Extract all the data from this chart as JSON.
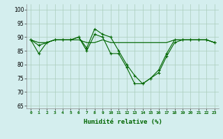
{
  "xlabel": "Humidité relative (%)",
  "xlim": [
    -0.5,
    23.5
  ],
  "ylim": [
    64,
    102
  ],
  "yticks": [
    65,
    70,
    75,
    80,
    85,
    90,
    95,
    100
  ],
  "xticks": [
    0,
    1,
    2,
    3,
    4,
    5,
    6,
    7,
    8,
    9,
    10,
    11,
    12,
    13,
    14,
    15,
    16,
    17,
    18,
    19,
    20,
    21,
    22,
    23
  ],
  "bg_color": "#d4eeee",
  "grid_color": "#aaccbb",
  "line_color": "#006600",
  "series_marked1": [
    89,
    84,
    88,
    89,
    89,
    89,
    90,
    86,
    93,
    91,
    90,
    85,
    80,
    76,
    73,
    75,
    78,
    84,
    89,
    89,
    89,
    89,
    89,
    88
  ],
  "series_flat1": [
    89,
    88,
    88,
    89,
    89,
    89,
    89,
    88,
    88,
    89,
    88,
    88,
    88,
    88,
    88,
    88,
    88,
    88,
    89,
    89,
    89,
    89,
    89,
    88
  ],
  "series_flat2": [
    89,
    88,
    88,
    89,
    89,
    89,
    89,
    88,
    88,
    89,
    88,
    88,
    88,
    88,
    88,
    88,
    88,
    88,
    89,
    89,
    89,
    89,
    89,
    88
  ],
  "series_marked2": [
    89,
    87,
    88,
    89,
    89,
    89,
    90,
    85,
    91,
    90,
    84,
    84,
    79,
    73,
    73,
    75,
    77,
    83,
    88,
    89,
    89,
    89,
    89,
    88
  ]
}
